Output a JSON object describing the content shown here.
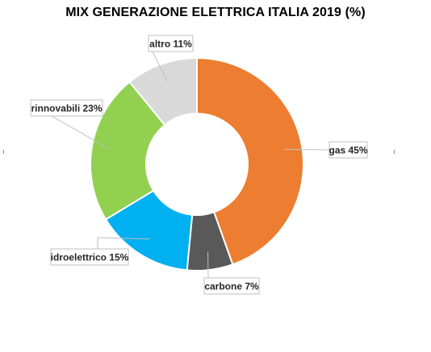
{
  "chart_data": {
    "type": "pie",
    "style": "donut",
    "title": "MIX GENERAZIONE ELETTRICA ITALIA 2019 (%)",
    "slices": [
      {
        "category": "gas",
        "value": 45,
        "label": "gas 45%",
        "color": "#ED7D31"
      },
      {
        "category": "carbone",
        "value": 7,
        "label": "carbone 7%",
        "color": "#595959"
      },
      {
        "category": "idroelettrico",
        "value": 15,
        "label": "idroelettrico 15%",
        "color": "#00B0F0"
      },
      {
        "category": "rinnovabili",
        "value": 23,
        "label": "rinnovabili 23%",
        "color": "#92D050"
      },
      {
        "category": "altro",
        "value": 11,
        "label": "altro 11%",
        "color": "#D9D9D9"
      }
    ],
    "legend": "none",
    "data_labels": "outside with leader lines"
  }
}
